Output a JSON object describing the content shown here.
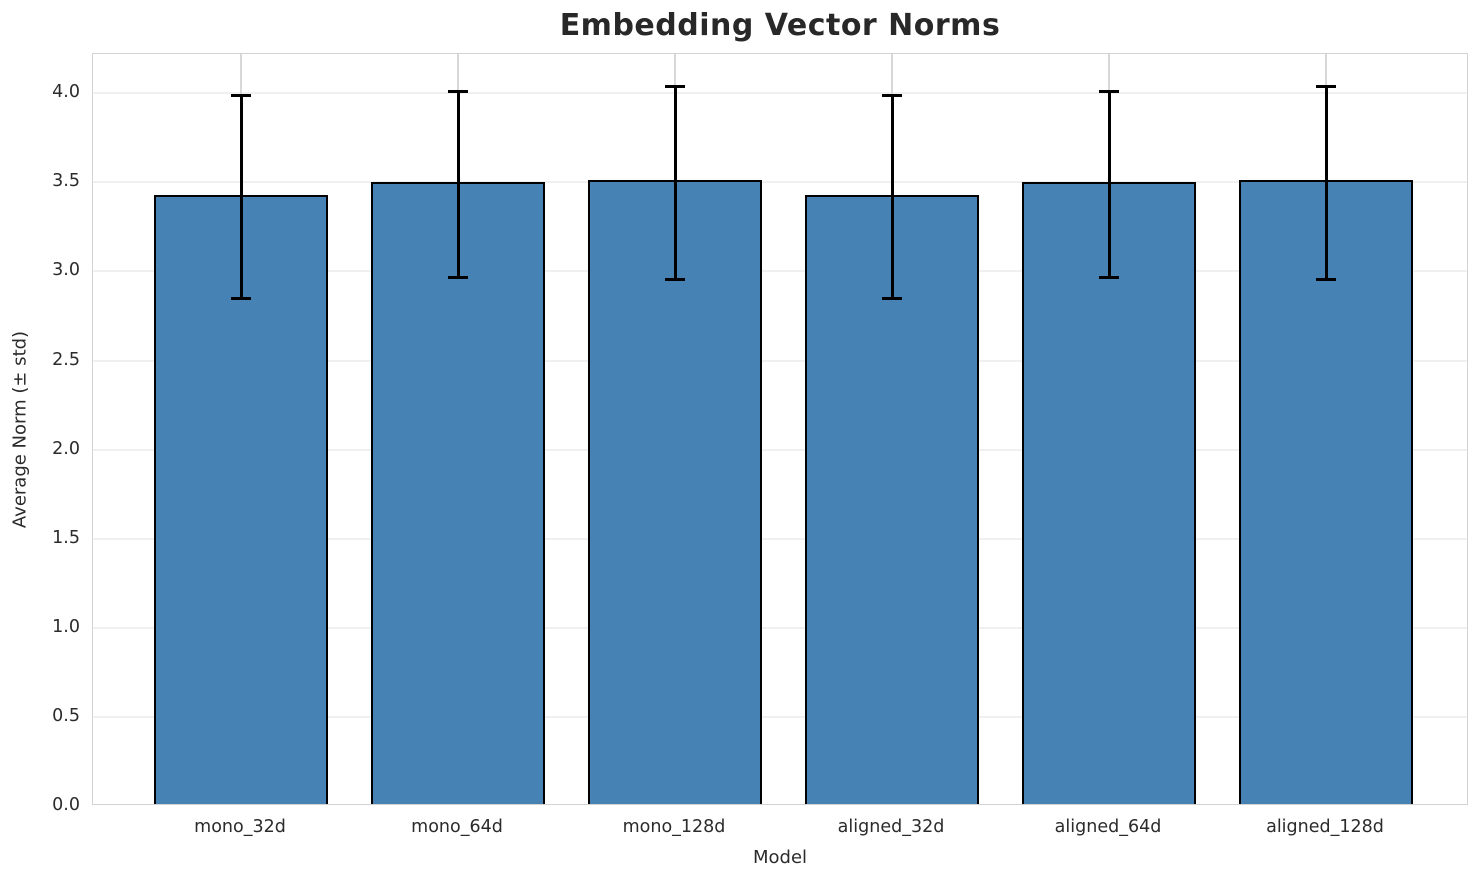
{
  "chart_data": {
    "type": "bar",
    "title": "Embedding Vector Norms",
    "xlabel": "Model",
    "ylabel": "Average Norm (± std)",
    "categories": [
      "mono_32d",
      "mono_64d",
      "mono_128d",
      "aligned_32d",
      "aligned_64d",
      "aligned_128d"
    ],
    "series": [
      {
        "name": "Average Norm",
        "values": [
          3.42,
          3.49,
          3.5,
          3.42,
          3.49,
          3.5
        ],
        "errors": [
          0.57,
          0.52,
          0.54,
          0.57,
          0.52,
          0.54
        ]
      }
    ],
    "yticks": [
      0.0,
      0.5,
      1.0,
      1.5,
      2.0,
      2.5,
      3.0,
      3.5,
      4.0
    ],
    "ytick_labels": [
      "0.0",
      "0.5",
      "1.0",
      "1.5",
      "2.0",
      "2.5",
      "3.0",
      "3.5",
      "4.0"
    ],
    "ylim": [
      0,
      4.22
    ],
    "grid": true,
    "legend_visible": false,
    "colors": {
      "bar_fill": "#4682b4",
      "bar_edge": "#000000",
      "error_bar": "#000000",
      "grid_horizontal": "#f0f0f0",
      "grid_vertical": "#d8d8d8",
      "spine": "#d2d2d2",
      "text": "#2b2b2b",
      "title_text": "#282828",
      "background": "#ffffff"
    }
  }
}
